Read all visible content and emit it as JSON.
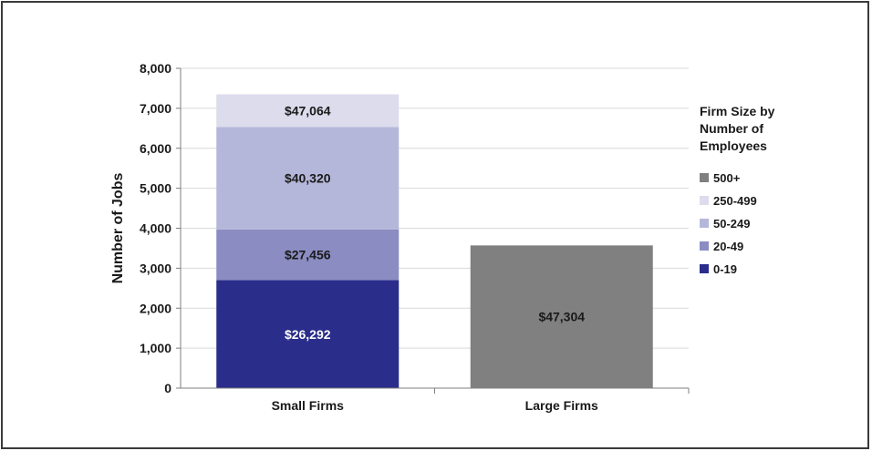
{
  "chart_data": {
    "type": "bar",
    "stacked": true,
    "categories": [
      "Small Firms",
      "Large Firms"
    ],
    "ylabel": "Number of Jobs",
    "xlabel": "",
    "ylim": [
      0,
      8000
    ],
    "yticks": [
      0,
      1000,
      2000,
      3000,
      4000,
      5000,
      6000,
      7000,
      8000
    ],
    "ytick_labels": [
      "0",
      "1,000",
      "2,000",
      "3,000",
      "4,000",
      "5,000",
      "6,000",
      "7,000",
      "8,000"
    ],
    "grid": true,
    "legend": {
      "title": "Firm Size by Number of Employees",
      "title_lines": [
        "Firm Size by",
        "Number of",
        "Employees"
      ],
      "placement": "right",
      "order": [
        "500+",
        "250-499",
        "50-249",
        "20-49",
        "0-19"
      ]
    },
    "series": [
      {
        "name": "0-19",
        "color": "#2a2d8a",
        "values": [
          2700,
          0
        ],
        "labels": [
          "$26,292",
          ""
        ],
        "label_color": "#ffffff"
      },
      {
        "name": "20-49",
        "color": "#8a8cc2",
        "values": [
          1270,
          0
        ],
        "labels": [
          "$27,456",
          ""
        ],
        "label_color": "#1a1a1a"
      },
      {
        "name": "50-249",
        "color": "#b5b7da",
        "values": [
          2560,
          0
        ],
        "labels": [
          "$40,320",
          ""
        ],
        "label_color": "#1a1a1a"
      },
      {
        "name": "250-499",
        "color": "#dcdcec",
        "values": [
          820,
          0
        ],
        "labels": [
          "$47,064",
          ""
        ],
        "label_color": "#1a1a1a"
      },
      {
        "name": "500+",
        "color": "#808080",
        "values": [
          0,
          3570
        ],
        "labels": [
          "",
          "$47,304"
        ],
        "label_color": "#1a1a1a"
      }
    ]
  }
}
